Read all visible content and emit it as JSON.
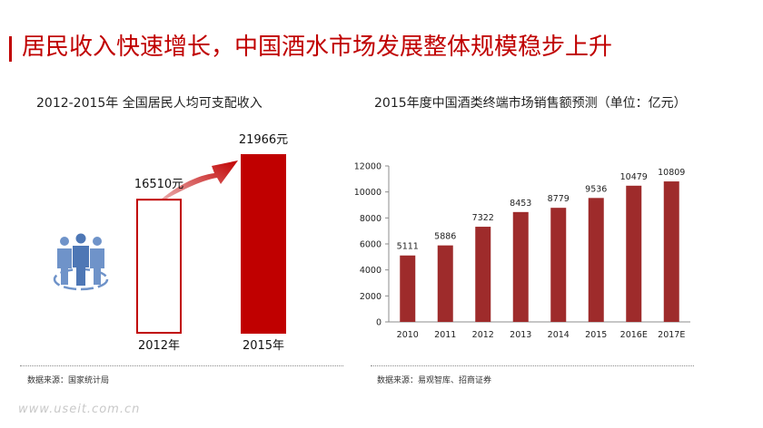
{
  "header": {
    "title": "居民收入快速增长，中国酒水市场发展整体规模稳步上升"
  },
  "colors": {
    "accent": "#c00000",
    "bar_dark_red": "#9e2b2b",
    "people_icon_blue": "#6f93c9"
  },
  "icons": {
    "people": "people-group-icon",
    "arrow": "growth-arrow-icon"
  },
  "left_panel": {
    "subtitle": "2012-2015年 全国居民人均可支配收入",
    "source": "数据来源：国家统计局"
  },
  "right_panel": {
    "subtitle": "2015年度中国酒类终端市场销售额预测（单位：亿元）",
    "source": "数据来源：易观智库、招商证券"
  },
  "watermark": "www.useit.com.cn",
  "chart_data": [
    {
      "type": "bar",
      "title": "2012-2015年 全国居民人均可支配收入",
      "categories": [
        "2012年",
        "2015年"
      ],
      "values": [
        16510,
        21966
      ],
      "value_labels": [
        "16510元",
        "21966元"
      ],
      "ylim": [
        0,
        21966
      ],
      "grid": false,
      "axes_visible": false,
      "fill_styles": [
        "outline",
        "solid"
      ]
    },
    {
      "type": "bar",
      "title": "2015年度中国酒类终端市场销售额预测（单位：亿元）",
      "categories": [
        "2010",
        "2011",
        "2012",
        "2013",
        "2014",
        "2015",
        "2016E",
        "2017E"
      ],
      "values": [
        5111,
        5886,
        7322,
        8453,
        8779,
        9536,
        10479,
        10809
      ],
      "ylim": [
        0,
        12000
      ],
      "yticks": [
        0,
        2000,
        4000,
        6000,
        8000,
        10000,
        12000
      ],
      "grid": false,
      "legend": "none"
    }
  ]
}
